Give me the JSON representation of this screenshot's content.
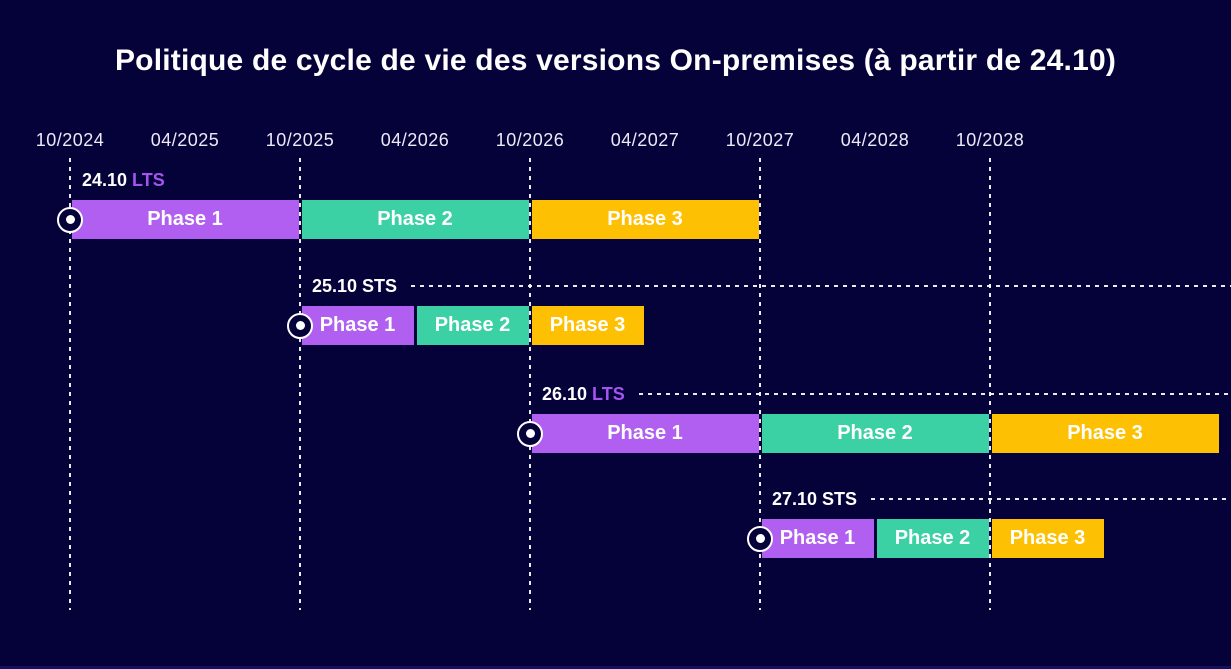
{
  "title": "Politique de cycle de vie des versions On-premises (à partir de 24.10)",
  "colors": {
    "background": "#050239",
    "phase1_purple": "#b15ff1",
    "phase2_teal": "#3cd1a4",
    "phase3_amber": "#fec003",
    "lts_accent_purple": "#a455f0",
    "sts_white": "#ffffff",
    "axis_text": "#eceaf6",
    "grid_white": "#ffffff"
  },
  "chart_data": {
    "type": "gantt",
    "title": "Politique de cycle de vie des versions On-premises (à partir de 24.10)",
    "x_axis": {
      "tick_labels": [
        "10/2024",
        "04/2025",
        "10/2025",
        "04/2026",
        "10/2026",
        "04/2027",
        "10/2027",
        "04/2028",
        "10/2028"
      ],
      "gridlines_at": [
        "10/2024",
        "10/2025",
        "10/2026",
        "10/2027",
        "10/2028"
      ],
      "range": [
        "10/2024",
        "10/2029"
      ],
      "grid": "dashed-vertical-on-october-ticks"
    },
    "legend_position": "none",
    "phase_colors": {
      "Phase 1": "#b15ff1",
      "Phase 2": "#3cd1a4",
      "Phase 3": "#fec003"
    },
    "rows": [
      {
        "version": "24.10",
        "channel": "LTS",
        "channel_color": "#a455f0",
        "dashed_line_to_edge": false,
        "phases": [
          {
            "label": "Phase 1",
            "start": "10/2024",
            "end": "10/2025",
            "color": "#b15ff1"
          },
          {
            "label": "Phase 2",
            "start": "10/2025",
            "end": "10/2026",
            "color": "#3cd1a4"
          },
          {
            "label": "Phase 3",
            "start": "10/2026",
            "end": "10/2027",
            "color": "#fec003"
          }
        ]
      },
      {
        "version": "25.10",
        "channel": "STS",
        "channel_color": "#ffffff",
        "dashed_line_to_edge": true,
        "phases": [
          {
            "label": "Phase 1",
            "start": "10/2025",
            "end": "04/2026",
            "color": "#b15ff1"
          },
          {
            "label": "Phase 2",
            "start": "04/2026",
            "end": "10/2026",
            "color": "#3cd1a4"
          },
          {
            "label": "Phase 3",
            "start": "10/2026",
            "end": "04/2027",
            "color": "#fec003"
          }
        ]
      },
      {
        "version": "26.10",
        "channel": "LTS",
        "channel_color": "#a455f0",
        "dashed_line_to_edge": true,
        "phases": [
          {
            "label": "Phase 1",
            "start": "10/2026",
            "end": "10/2027",
            "color": "#b15ff1"
          },
          {
            "label": "Phase 2",
            "start": "10/2027",
            "end": "10/2028",
            "color": "#3cd1a4"
          },
          {
            "label": "Phase 3",
            "start": "10/2028",
            "end": "10/2029",
            "color": "#fec003"
          }
        ]
      },
      {
        "version": "27.10",
        "channel": "STS",
        "channel_color": "#ffffff",
        "dashed_line_to_edge": true,
        "phases": [
          {
            "label": "Phase 1",
            "start": "10/2027",
            "end": "04/2028",
            "color": "#b15ff1"
          },
          {
            "label": "Phase 2",
            "start": "04/2028",
            "end": "10/2028",
            "color": "#3cd1a4"
          },
          {
            "label": "Phase 3",
            "start": "10/2028",
            "end": "04/2029",
            "color": "#fec003"
          }
        ]
      }
    ]
  }
}
